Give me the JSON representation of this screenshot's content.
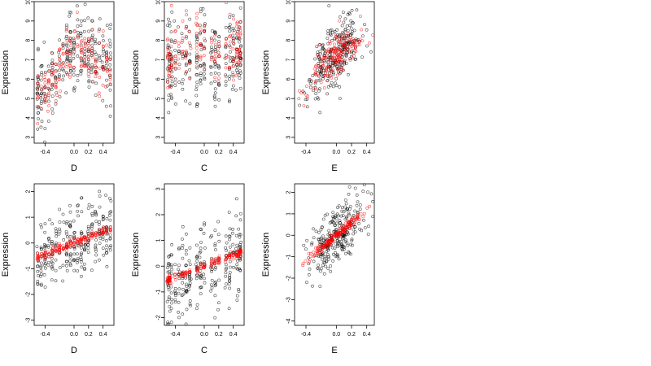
{
  "colors": {
    "observed": "#000000",
    "fitted": "#ff0000"
  },
  "chart_data": [
    {
      "type": "scatter",
      "xlabel": "D",
      "ylabel": "Expression",
      "xlim": [
        -0.55,
        0.55
      ],
      "ylim": [
        2.7,
        10
      ],
      "xticks": [
        "-0.4",
        "0.0",
        "0.2",
        "0.4"
      ],
      "xtick_values": [
        -0.4,
        0.0,
        0.2,
        0.4
      ],
      "yticks": [
        "3",
        "4",
        "5",
        "6",
        "7",
        "8",
        "9",
        "10"
      ],
      "ytick_values": [
        3,
        4,
        5,
        6,
        7,
        8,
        9,
        10
      ],
      "x_levels": [
        -0.5,
        -0.45,
        -0.4,
        -0.35,
        -0.3,
        -0.25,
        -0.2,
        -0.15,
        -0.1,
        -0.05,
        0.0,
        0.05,
        0.1,
        0.15,
        0.2,
        0.25,
        0.3,
        0.35,
        0.4,
        0.45,
        0.5
      ],
      "observed_trend": [
        [
          -0.5,
          5.2
        ],
        [
          -0.3,
          6.1
        ],
        [
          -0.15,
          7.2
        ],
        [
          0.0,
          7.7
        ],
        [
          0.1,
          7.6
        ],
        [
          0.3,
          7.1
        ],
        [
          0.5,
          6.9
        ]
      ],
      "observed_spread": 1.1,
      "fitted_trend": [
        [
          -0.5,
          5.1
        ],
        [
          -0.3,
          6.0
        ],
        [
          -0.15,
          7.0
        ],
        [
          0.0,
          7.6
        ],
        [
          0.1,
          7.4
        ],
        [
          0.3,
          6.9
        ],
        [
          0.5,
          6.7
        ]
      ],
      "fitted_spread": 0.7
    },
    {
      "type": "scatter",
      "xlabel": "C",
      "ylabel": "Expression",
      "xlim": [
        -0.55,
        0.55
      ],
      "ylim": [
        2.7,
        10
      ],
      "xticks": [
        "-0.4",
        "0.0",
        "0.2",
        "0.4"
      ],
      "xtick_values": [
        -0.4,
        0.0,
        0.2,
        0.4
      ],
      "yticks": [
        "3",
        "4",
        "5",
        "6",
        "7",
        "8",
        "9",
        "10"
      ],
      "ytick_values": [
        3,
        4,
        5,
        6,
        7,
        8,
        9,
        10
      ],
      "x_levels": [
        -0.5,
        -0.48,
        -0.45,
        -0.4,
        -0.35,
        -0.3,
        -0.25,
        -0.2,
        -0.1,
        -0.05,
        0.0,
        0.1,
        0.15,
        0.2,
        0.3,
        0.35,
        0.4,
        0.45,
        0.48,
        0.5
      ],
      "observed_trend": [
        [
          -0.5,
          6.8
        ],
        [
          -0.2,
          7.0
        ],
        [
          0.0,
          7.2
        ],
        [
          0.2,
          7.3
        ],
        [
          0.5,
          7.4
        ]
      ],
      "observed_spread": 1.2,
      "fitted_trend": [
        [
          -0.5,
          7.0
        ],
        [
          -0.3,
          7.8
        ],
        [
          -0.1,
          8.0
        ],
        [
          0.1,
          7.6
        ],
        [
          0.3,
          7.4
        ],
        [
          0.5,
          7.5
        ]
      ],
      "fitted_spread": 0.9
    },
    {
      "type": "scatter",
      "xlabel": "E",
      "ylabel": "Expression",
      "xlim": [
        -0.55,
        0.5
      ],
      "ylim": [
        2.7,
        10
      ],
      "xticks": [
        "-0.4",
        "0.0",
        "0.2",
        "0.4"
      ],
      "xtick_values": [
        -0.4,
        0.0,
        0.2,
        0.4
      ],
      "yticks": [
        "3",
        "4",
        "5",
        "6",
        "7",
        "8",
        "9",
        "10"
      ],
      "ytick_values": [
        3,
        4,
        5,
        6,
        7,
        8,
        9,
        10
      ],
      "observed_trend": [
        [
          -0.5,
          4.5
        ],
        [
          -0.3,
          6.0
        ],
        [
          -0.1,
          7.0
        ],
        [
          0.0,
          7.4
        ],
        [
          0.1,
          7.8
        ],
        [
          0.3,
          8.0
        ],
        [
          0.45,
          8.2
        ]
      ],
      "observed_spread": 0.8,
      "fitted_trend": [
        [
          -0.5,
          4.6
        ],
        [
          -0.3,
          6.2
        ],
        [
          -0.1,
          7.0
        ],
        [
          0.0,
          7.3
        ],
        [
          0.1,
          7.6
        ],
        [
          0.3,
          8.0
        ],
        [
          0.45,
          8.2
        ]
      ],
      "fitted_spread": 0.5
    },
    {
      "type": "scatter",
      "xlabel": "D",
      "ylabel": "Expression",
      "xlim": [
        -0.55,
        0.55
      ],
      "ylim": [
        -3.2,
        2.3
      ],
      "xticks": [
        "-0.4",
        "0.0",
        "0.2",
        "0.4"
      ],
      "xtick_values": [
        -0.4,
        0.0,
        0.2,
        0.4
      ],
      "yticks": [
        "-3",
        "-2",
        "-1",
        "0",
        "1",
        "2"
      ],
      "ytick_values": [
        -3,
        -2,
        -1,
        0,
        1,
        2
      ],
      "x_levels": [
        -0.5,
        -0.45,
        -0.4,
        -0.35,
        -0.3,
        -0.25,
        -0.2,
        -0.15,
        -0.1,
        -0.05,
        0.0,
        0.05,
        0.1,
        0.15,
        0.2,
        0.25,
        0.3,
        0.35,
        0.4,
        0.45,
        0.5
      ],
      "observed_trend": [
        [
          -0.5,
          -0.6
        ],
        [
          0.0,
          0.0
        ],
        [
          0.5,
          0.6
        ]
      ],
      "observed_spread": 0.75,
      "fitted_trend": [
        [
          -0.55,
          -0.62
        ],
        [
          0.55,
          0.62
        ]
      ],
      "fitted_spread": 0.08
    },
    {
      "type": "scatter",
      "xlabel": "C",
      "ylabel": "Expression",
      "xlim": [
        -0.55,
        0.55
      ],
      "ylim": [
        -2.3,
        3.2
      ],
      "xticks": [
        "-0.4",
        "0.0",
        "0.2",
        "0.4"
      ],
      "xtick_values": [
        -0.4,
        0.0,
        0.2,
        0.4
      ],
      "yticks": [
        "-2",
        "-1",
        "0",
        "1",
        "2",
        "3"
      ],
      "ytick_values": [
        -2,
        -1,
        0,
        1,
        2,
        3
      ],
      "x_levels": [
        -0.5,
        -0.48,
        -0.45,
        -0.4,
        -0.35,
        -0.3,
        -0.25,
        -0.2,
        -0.1,
        -0.05,
        0.0,
        0.1,
        0.15,
        0.2,
        0.3,
        0.35,
        0.4,
        0.45,
        0.48,
        0.5
      ],
      "observed_trend": [
        [
          -0.5,
          -0.5
        ],
        [
          0.0,
          0.0
        ],
        [
          0.5,
          0.5
        ]
      ],
      "observed_spread": 0.8,
      "fitted_trend": [
        [
          -0.52,
          -0.55
        ],
        [
          0.52,
          0.55
        ]
      ],
      "fitted_spread": 0.08
    },
    {
      "type": "scatter",
      "xlabel": "E",
      "ylabel": "Expression",
      "xlim": [
        -0.55,
        0.5
      ],
      "ylim": [
        -4.2,
        2.4
      ],
      "xticks": [
        "-0.4",
        "0.0",
        "0.2",
        "0.4"
      ],
      "xtick_values": [
        -0.4,
        0.0,
        0.2,
        0.4
      ],
      "yticks": [
        "-4",
        "-3",
        "-2",
        "-1",
        "0",
        "1",
        "2"
      ],
      "ytick_values": [
        -4,
        -3,
        -2,
        -1,
        0,
        1,
        2
      ],
      "observed_trend": [
        [
          -0.55,
          -1.7
        ],
        [
          0.0,
          0.0
        ],
        [
          0.45,
          1.3
        ]
      ],
      "observed_spread": 0.75,
      "fitted_trend": [
        [
          -0.55,
          -1.6
        ],
        [
          0.47,
          1.35
        ]
      ],
      "fitted_spread": 0.1
    }
  ]
}
